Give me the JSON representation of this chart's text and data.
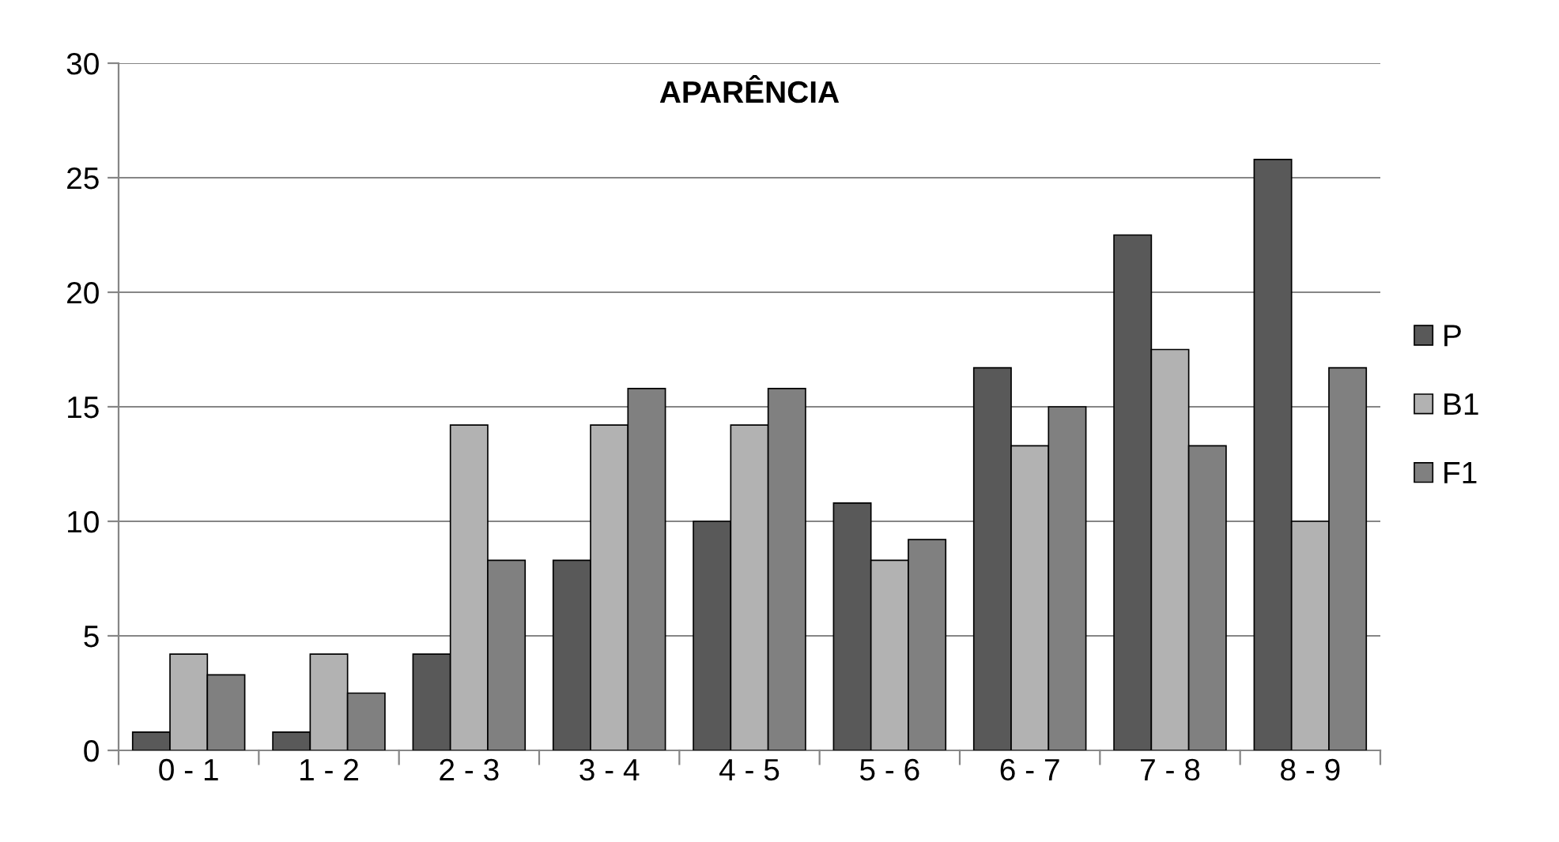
{
  "chart_data": {
    "type": "bar",
    "title": "APARÊNCIA",
    "categories": [
      "0 - 1",
      "1 - 2",
      "2 - 3",
      "3 - 4",
      "4 - 5",
      "5 - 6",
      "6 - 7",
      "7 - 8",
      "8 - 9"
    ],
    "series": [
      {
        "name": "P",
        "color": "#595959",
        "values": [
          0.8,
          0.8,
          4.2,
          8.3,
          10,
          10.8,
          16.7,
          22.5,
          25.8
        ]
      },
      {
        "name": "B1",
        "color": "#b2b2b2",
        "values": [
          4.2,
          4.2,
          14.2,
          14.2,
          14.2,
          8.3,
          13.3,
          17.5,
          10
        ]
      },
      {
        "name": "F1",
        "color": "#808080",
        "values": [
          3.3,
          2.5,
          8.3,
          15.8,
          15.8,
          9.2,
          15,
          13.3,
          16.7
        ]
      }
    ],
    "ylim": [
      0,
      30
    ],
    "yticks": [
      0,
      5,
      10,
      15,
      20,
      25,
      30
    ],
    "grid": "y",
    "legend": "right"
  }
}
